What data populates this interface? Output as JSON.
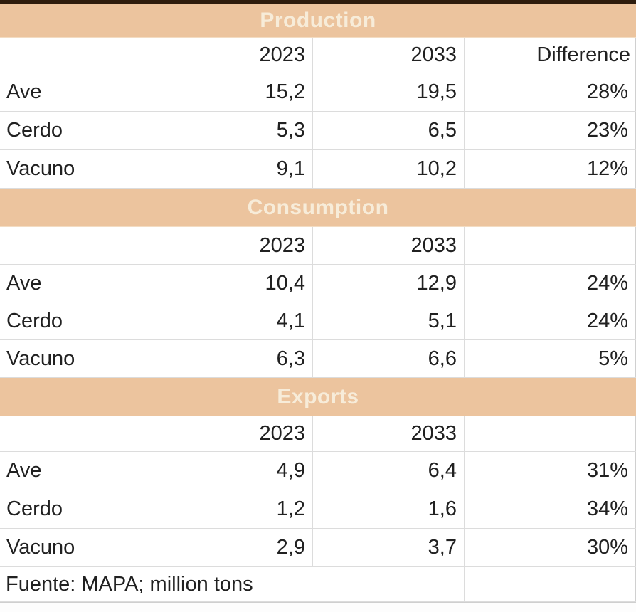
{
  "chart_data": {
    "type": "table",
    "sections": [
      {
        "title": "Production",
        "columns": [
          "",
          "2023",
          "2033",
          "Difference"
        ],
        "rows": [
          {
            "label": "Ave",
            "y2023": "15,2",
            "y2033": "19,5",
            "difference": "28%"
          },
          {
            "label": "Cerdo",
            "y2023": "5,3",
            "y2033": "6,5",
            "difference": "23%"
          },
          {
            "label": "Vacuno",
            "y2023": "9,1",
            "y2033": "10,2",
            "difference": "12%"
          }
        ]
      },
      {
        "title": "Consumption",
        "columns": [
          "",
          "2023",
          "2033",
          ""
        ],
        "rows": [
          {
            "label": "Ave",
            "y2023": "10,4",
            "y2033": "12,9",
            "difference": "24%"
          },
          {
            "label": "Cerdo",
            "y2023": "4,1",
            "y2033": "5,1",
            "difference": "24%"
          },
          {
            "label": "Vacuno",
            "y2023": "6,3",
            "y2033": "6,6",
            "difference": "5%"
          }
        ]
      },
      {
        "title": "Exports",
        "columns": [
          "",
          "2023",
          "2033",
          ""
        ],
        "rows": [
          {
            "label": "Ave",
            "y2023": "4,9",
            "y2033": "6,4",
            "difference": "31%"
          },
          {
            "label": "Cerdo",
            "y2023": "1,2",
            "y2033": "1,6",
            "difference": "34%"
          },
          {
            "label": "Vacuno",
            "y2023": "2,9",
            "y2033": "3,7",
            "difference": "30%"
          }
        ]
      }
    ],
    "source_note": "Fuente: MAPA; million tons"
  },
  "colors": {
    "band_background": "#ecc49e",
    "band_text": "#f7ecd9",
    "top_bar": "#2e1c0d",
    "grid_line": "#dcdcdc",
    "cell_text": "#212121"
  }
}
